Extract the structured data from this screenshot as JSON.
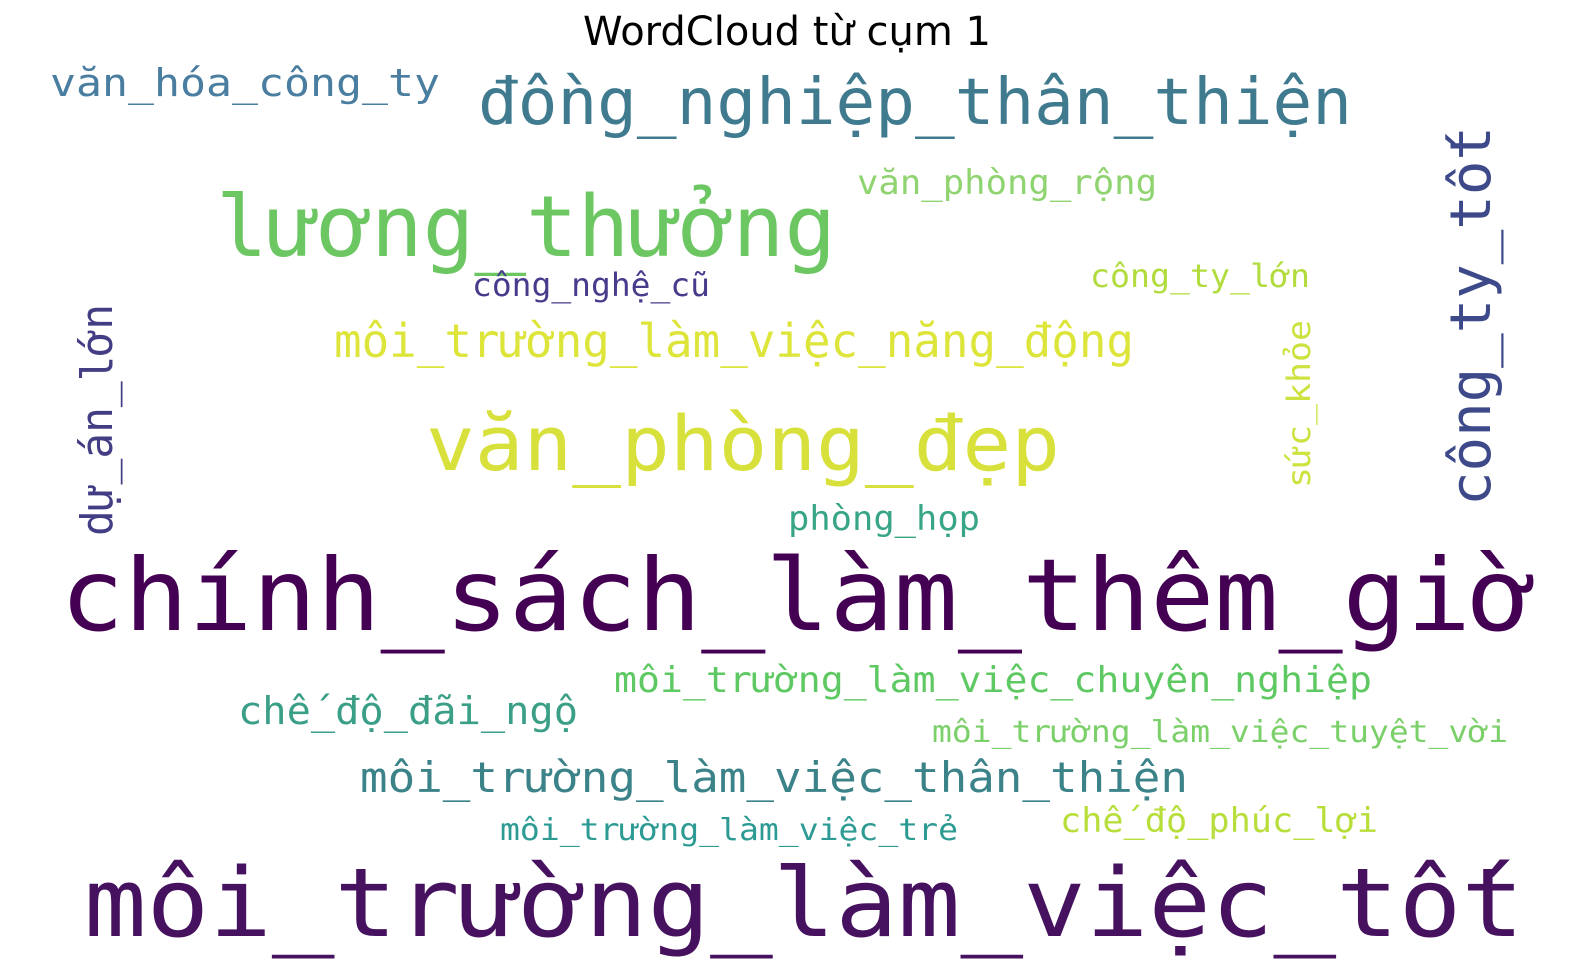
{
  "title": "WordCloud từ cụm 1",
  "palette": "viridis",
  "words": [
    {
      "text": "chính_sách_làm_thêm_giờ",
      "color": "#440154"
    },
    {
      "text": "môi_trường_làm_việc_tốt",
      "color": "#46125f"
    },
    {
      "text": "lương_thưởng",
      "color": "#6cc763"
    },
    {
      "text": "văn_phòng_đẹp",
      "color": "#d8e03b"
    },
    {
      "text": "đồng_nghiệp_thân_thiện",
      "color": "#3f7a8f"
    },
    {
      "text": "công_ty_tốt",
      "color": "#3e4989"
    },
    {
      "text": "môi_trường_làm_việc_năng_động",
      "color": "#dde53a"
    },
    {
      "text": "môi_trường_làm_việc_thân_thiện",
      "color": "#3b8389"
    },
    {
      "text": "dự_án_lớn",
      "color": "#433d84"
    },
    {
      "text": "môi_trường_làm_việc_chuyên_nghiệp",
      "color": "#5ec962"
    },
    {
      "text": "chế_độ_đãi_ngộ",
      "color": "#3a9f86"
    },
    {
      "text": "văn_hóa_công_ty",
      "color": "#4a7ea0"
    },
    {
      "text": "văn_phòng_rộng",
      "color": "#8fd470"
    },
    {
      "text": "môi_trường_làm_việc_tuyệt_vời",
      "color": "#7bd06a"
    },
    {
      "text": "chế_độ_phúc_lợi",
      "color": "#b8de3c"
    },
    {
      "text": "phòng_họp",
      "color": "#38a587"
    },
    {
      "text": "môi_trường_làm_việc_trẻ",
      "color": "#2d9b94"
    },
    {
      "text": "công_ty_lớn",
      "color": "#b2dc3d"
    },
    {
      "text": "công_nghệ_cũ",
      "color": "#473c8c"
    },
    {
      "text": "sức_khỏe",
      "color": "#cde23e"
    }
  ]
}
